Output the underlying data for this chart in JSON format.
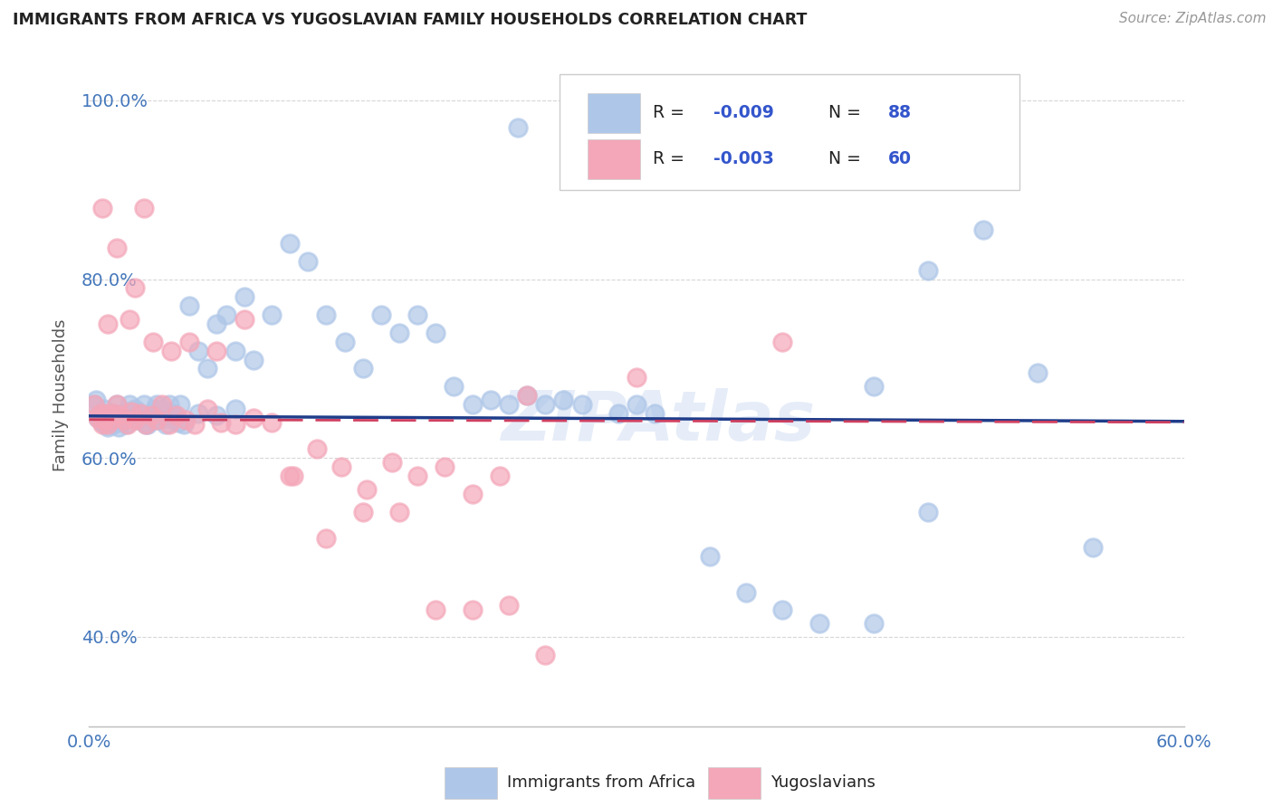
{
  "title": "IMMIGRANTS FROM AFRICA VS YUGOSLAVIAN FAMILY HOUSEHOLDS CORRELATION CHART",
  "source": "Source: ZipAtlas.com",
  "ylabel": "Family Households",
  "watermark": "ZIPAtlas",
  "legend_label1": "Immigrants from Africa",
  "legend_label2": "Yugoslavians",
  "xlim": [
    0.0,
    0.6
  ],
  "ylim": [
    0.3,
    1.04
  ],
  "yticks": [
    0.4,
    0.6,
    0.8,
    1.0
  ],
  "ytick_labels": [
    "40.0%",
    "60.0%",
    "80.0%",
    "100.0%"
  ],
  "xticks": [
    0.0,
    0.12,
    0.24,
    0.36,
    0.48,
    0.6
  ],
  "xtick_labels": [
    "0.0%",
    "",
    "",
    "",
    "",
    "60.0%"
  ],
  "blue_color": "#aec6e8",
  "blue_line_color": "#1f3d8a",
  "pink_color": "#f4a7b9",
  "pink_line_color": "#d04060",
  "background_color": "#ffffff",
  "grid_color": "#cccccc",
  "title_color": "#222222",
  "axis_label_color": "#4477bb",
  "blue_scatter_x": [
    0.003,
    0.005,
    0.006,
    0.007,
    0.008,
    0.009,
    0.01,
    0.011,
    0.012,
    0.013,
    0.014,
    0.015,
    0.016,
    0.017,
    0.018,
    0.019,
    0.02,
    0.022,
    0.024,
    0.026,
    0.028,
    0.03,
    0.032,
    0.034,
    0.036,
    0.038,
    0.04,
    0.042,
    0.044,
    0.046,
    0.05,
    0.055,
    0.06,
    0.065,
    0.07,
    0.075,
    0.08,
    0.085,
    0.09,
    0.1,
    0.11,
    0.12,
    0.13,
    0.14,
    0.15,
    0.16,
    0.17,
    0.18,
    0.19,
    0.2,
    0.21,
    0.22,
    0.23,
    0.24,
    0.25,
    0.26,
    0.27,
    0.29,
    0.31,
    0.34,
    0.36,
    0.38,
    0.4,
    0.43,
    0.46,
    0.49,
    0.52,
    0.55,
    0.235,
    0.3,
    0.43,
    0.46,
    0.004,
    0.007,
    0.01,
    0.013,
    0.016,
    0.019,
    0.022,
    0.025,
    0.028,
    0.031,
    0.034,
    0.037,
    0.04,
    0.043,
    0.046,
    0.049,
    0.052,
    0.06,
    0.07,
    0.08
  ],
  "blue_scatter_y": [
    0.66,
    0.645,
    0.65,
    0.64,
    0.655,
    0.638,
    0.648,
    0.643,
    0.65,
    0.638,
    0.644,
    0.66,
    0.635,
    0.648,
    0.643,
    0.65,
    0.638,
    0.652,
    0.648,
    0.643,
    0.65,
    0.66,
    0.638,
    0.648,
    0.655,
    0.643,
    0.65,
    0.638,
    0.66,
    0.648,
    0.66,
    0.77,
    0.72,
    0.7,
    0.75,
    0.76,
    0.72,
    0.78,
    0.71,
    0.76,
    0.84,
    0.82,
    0.76,
    0.73,
    0.7,
    0.76,
    0.74,
    0.76,
    0.74,
    0.68,
    0.66,
    0.665,
    0.66,
    0.67,
    0.66,
    0.665,
    0.66,
    0.65,
    0.65,
    0.49,
    0.45,
    0.43,
    0.415,
    0.68,
    0.81,
    0.855,
    0.695,
    0.5,
    0.97,
    0.66,
    0.415,
    0.54,
    0.665,
    0.65,
    0.635,
    0.64,
    0.648,
    0.643,
    0.66,
    0.655,
    0.645,
    0.638,
    0.643,
    0.66,
    0.655,
    0.645,
    0.65,
    0.64,
    0.638,
    0.65,
    0.648,
    0.655
  ],
  "pink_scatter_x": [
    0.003,
    0.005,
    0.006,
    0.007,
    0.008,
    0.009,
    0.01,
    0.011,
    0.012,
    0.013,
    0.015,
    0.017,
    0.019,
    0.021,
    0.023,
    0.025,
    0.028,
    0.031,
    0.034,
    0.037,
    0.04,
    0.044,
    0.048,
    0.053,
    0.058,
    0.065,
    0.072,
    0.08,
    0.09,
    0.1,
    0.112,
    0.125,
    0.138,
    0.152,
    0.166,
    0.18,
    0.195,
    0.21,
    0.225,
    0.24,
    0.015,
    0.025,
    0.035,
    0.045,
    0.022,
    0.03,
    0.055,
    0.07,
    0.085,
    0.11,
    0.13,
    0.15,
    0.17,
    0.19,
    0.21,
    0.23,
    0.25,
    0.3,
    0.38,
    0.007,
    0.01
  ],
  "pink_scatter_y": [
    0.66,
    0.645,
    0.65,
    0.638,
    0.643,
    0.65,
    0.638,
    0.648,
    0.643,
    0.65,
    0.66,
    0.648,
    0.643,
    0.638,
    0.652,
    0.643,
    0.65,
    0.638,
    0.648,
    0.643,
    0.66,
    0.638,
    0.648,
    0.643,
    0.638,
    0.655,
    0.64,
    0.638,
    0.645,
    0.64,
    0.58,
    0.61,
    0.59,
    0.565,
    0.595,
    0.58,
    0.59,
    0.56,
    0.58,
    0.67,
    0.835,
    0.79,
    0.73,
    0.72,
    0.755,
    0.88,
    0.73,
    0.72,
    0.755,
    0.58,
    0.51,
    0.54,
    0.54,
    0.43,
    0.43,
    0.435,
    0.38,
    0.69,
    0.73,
    0.88,
    0.75
  ],
  "blue_trend_x": [
    0.0,
    0.6
  ],
  "blue_trend_y": [
    0.647,
    0.641
  ],
  "pink_trend_x": [
    0.0,
    0.6
  ],
  "pink_trend_y": [
    0.643,
    0.64
  ]
}
